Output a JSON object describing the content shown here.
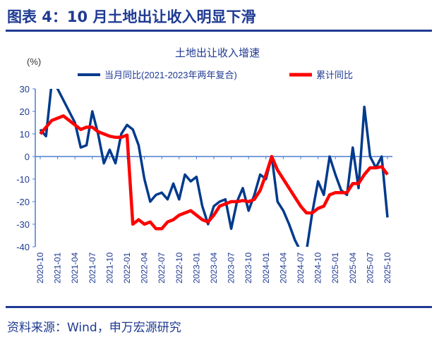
{
  "figure_title": "图表 4：10 月土地出让收入明显下滑",
  "source": "资料来源：Wind，申万宏源研究",
  "chart_data": {
    "type": "line",
    "title": "土地出让收入增速",
    "ylabel": "(%)",
    "ylim": [
      -40,
      30
    ],
    "yticks": [
      30,
      20,
      10,
      0,
      -10,
      -20,
      -30,
      -40
    ],
    "grid": false,
    "legend": "top",
    "x_start": "2020-10",
    "x_end": "2025-10",
    "xtick_labels": [
      "2020-10",
      "2021-01",
      "2021-04",
      "2021-07",
      "2021-10",
      "2022-01",
      "2022-04",
      "2022-07",
      "2022-10",
      "2023-01",
      "2023-04",
      "2023-07",
      "2023-10",
      "2024-01",
      "2024-04",
      "2024-07",
      "2024-10",
      "2025-01",
      "2025-04",
      "2025-07",
      "2025-10"
    ],
    "series": [
      {
        "name": "当月同比(2021-2023年两年复合)",
        "color": "#003a8c",
        "values": [
          12,
          9,
          33,
          30,
          25,
          20,
          15,
          4,
          5,
          20,
          10,
          -3,
          3,
          -3,
          10,
          14,
          12,
          5,
          -10,
          -20,
          -17,
          -16,
          -19,
          -12,
          -19,
          -8,
          -11,
          -9,
          -22,
          -30,
          -22,
          -20,
          -19,
          -32,
          -20,
          -14,
          -24,
          -17,
          -8,
          -10,
          0,
          -20,
          -24,
          -30,
          -37,
          -42,
          -42,
          -25,
          -11,
          -17,
          0,
          -8,
          -15,
          -17,
          4,
          -14,
          22,
          0,
          -5,
          0,
          -27
        ]
      },
      {
        "name": "累计同比",
        "color": "#ff0000",
        "values": [
          10,
          13,
          16,
          17,
          18,
          16,
          14,
          12,
          13,
          13,
          11,
          10,
          9,
          8.5,
          8.5,
          9.5,
          -30,
          -28,
          -30,
          -29,
          -32,
          -32,
          -29,
          -28,
          -26,
          -25,
          -24,
          -26,
          -28,
          -29,
          -26,
          -22,
          -21,
          -20,
          -20,
          -19.5,
          -20,
          -19,
          -15,
          -8,
          0,
          -6,
          -10,
          -14,
          -18,
          -22,
          -25,
          -25,
          -23,
          -22,
          -17,
          -16,
          -16,
          -16,
          -12,
          -12,
          -8,
          -5,
          -5,
          -4.5,
          -8
        ]
      }
    ]
  }
}
